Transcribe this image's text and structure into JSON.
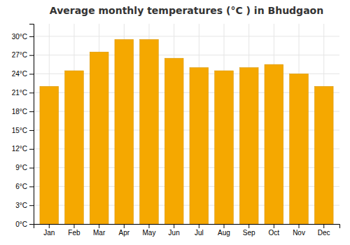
{
  "chart_data": {
    "type": "bar",
    "title": "Average monthly temperatures (°C ) in Bhudgaon",
    "categories": [
      "Jan",
      "Feb",
      "Mar",
      "Apr",
      "May",
      "Jun",
      "Jul",
      "Aug",
      "Sep",
      "Oct",
      "Nov",
      "Dec"
    ],
    "values": [
      22,
      24.5,
      27.5,
      29.5,
      29.5,
      26.5,
      25,
      24.5,
      25,
      25.5,
      24,
      22
    ],
    "color": "#F5A800",
    "ylim": [
      0,
      32
    ],
    "yticks": [
      {
        "value": 0,
        "label": "0°C"
      },
      {
        "value": 3,
        "label": "3°C"
      },
      {
        "value": 6,
        "label": "6°C"
      },
      {
        "value": 9,
        "label": "9°C"
      },
      {
        "value": 12,
        "label": "12°C"
      },
      {
        "value": 15,
        "label": "15°C"
      },
      {
        "value": 18,
        "label": "18°C"
      },
      {
        "value": 21,
        "label": "21°C"
      },
      {
        "value": 24,
        "label": "24°C"
      },
      {
        "value": 27,
        "label": "27°C"
      },
      {
        "value": 30,
        "label": "30°C"
      }
    ],
    "grid": true
  }
}
